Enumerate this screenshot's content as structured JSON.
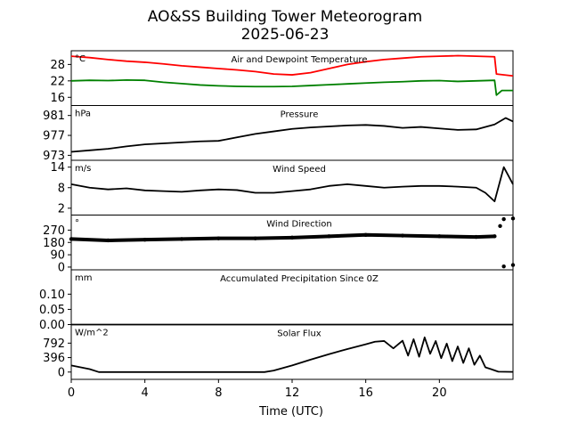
{
  "figure": {
    "title_line1": "AO&SS Building Tower Meteorogram",
    "title_line2": "2025-06-23",
    "xlabel": "Time (UTC)",
    "x_ticks": [
      0,
      4,
      8,
      12,
      16,
      20
    ],
    "xlim": [
      0,
      24
    ]
  },
  "chart_data": [
    {
      "type": "line",
      "title": "Air and Dewpoint Temperature",
      "ylabel": "°C",
      "ylim": [
        13,
        33
      ],
      "y_ticks": [
        16,
        22,
        28
      ],
      "series": [
        {
          "color": "#ff0000",
          "points": [
            [
              0,
              31.0
            ],
            [
              1,
              30.5
            ],
            [
              2,
              29.8
            ],
            [
              3,
              29.2
            ],
            [
              4,
              28.8
            ],
            [
              5,
              28.2
            ],
            [
              6,
              27.5
            ],
            [
              7,
              27.0
            ],
            [
              8,
              26.5
            ],
            [
              9,
              26.0
            ],
            [
              10,
              25.4
            ],
            [
              11,
              24.5
            ],
            [
              12,
              24.2
            ],
            [
              13,
              25.0
            ],
            [
              14,
              26.5
            ],
            [
              15,
              28.0
            ],
            [
              16,
              29.0
            ],
            [
              17,
              29.8
            ],
            [
              18,
              30.3
            ],
            [
              19,
              30.8
            ],
            [
              20,
              31.0
            ],
            [
              21,
              31.2
            ],
            [
              22,
              31.0
            ],
            [
              23,
              30.8
            ],
            [
              23.1,
              24.5
            ],
            [
              24,
              23.8
            ]
          ]
        },
        {
          "color": "#008000",
          "points": [
            [
              0,
              22.0
            ],
            [
              1,
              22.2
            ],
            [
              2,
              22.1
            ],
            [
              3,
              22.3
            ],
            [
              4,
              22.2
            ],
            [
              5,
              21.5
            ],
            [
              6,
              21.0
            ],
            [
              7,
              20.5
            ],
            [
              8,
              20.2
            ],
            [
              9,
              20.0
            ],
            [
              10,
              19.9
            ],
            [
              11,
              19.9
            ],
            [
              12,
              20.0
            ],
            [
              13,
              20.3
            ],
            [
              14,
              20.6
            ],
            [
              15,
              20.9
            ],
            [
              16,
              21.2
            ],
            [
              17,
              21.5
            ],
            [
              18,
              21.7
            ],
            [
              19,
              22.0
            ],
            [
              20,
              22.1
            ],
            [
              21,
              21.8
            ],
            [
              22,
              22.0
            ],
            [
              23,
              22.2
            ],
            [
              23.1,
              16.8
            ],
            [
              23.4,
              18.5
            ],
            [
              24,
              18.5
            ]
          ]
        }
      ]
    },
    {
      "type": "line",
      "title": "Pressure",
      "ylabel": "hPa",
      "ylim": [
        972,
        983
      ],
      "y_ticks": [
        973,
        977,
        981
      ],
      "series": [
        {
          "color": "#000000",
          "points": [
            [
              0,
              973.7
            ],
            [
              1,
              974.0
            ],
            [
              2,
              974.3
            ],
            [
              3,
              974.8
            ],
            [
              4,
              975.2
            ],
            [
              5,
              975.4
            ],
            [
              6,
              975.6
            ],
            [
              7,
              975.8
            ],
            [
              8,
              975.9
            ],
            [
              9,
              976.6
            ],
            [
              10,
              977.3
            ],
            [
              11,
              977.8
            ],
            [
              12,
              978.3
            ],
            [
              13,
              978.6
            ],
            [
              14,
              978.8
            ],
            [
              15,
              979.0
            ],
            [
              16,
              979.1
            ],
            [
              17,
              978.9
            ],
            [
              18,
              978.5
            ],
            [
              19,
              978.7
            ],
            [
              20,
              978.4
            ],
            [
              21,
              978.1
            ],
            [
              22,
              978.2
            ],
            [
              23,
              979.2
            ],
            [
              23.6,
              980.5
            ],
            [
              24,
              979.8
            ]
          ]
        }
      ]
    },
    {
      "type": "line",
      "title": "Wind Speed",
      "ylabel": "m/s",
      "ylim": [
        0,
        16
      ],
      "y_ticks": [
        2,
        8,
        14
      ],
      "series": [
        {
          "color": "#000000",
          "points": [
            [
              0,
              9.0
            ],
            [
              1,
              8.0
            ],
            [
              2,
              7.5
            ],
            [
              3,
              7.8
            ],
            [
              4,
              7.2
            ],
            [
              5,
              7.0
            ],
            [
              6,
              6.8
            ],
            [
              7,
              7.2
            ],
            [
              8,
              7.5
            ],
            [
              9,
              7.3
            ],
            [
              10,
              6.5
            ],
            [
              11,
              6.5
            ],
            [
              12,
              7.0
            ],
            [
              13,
              7.5
            ],
            [
              14,
              8.5
            ],
            [
              15,
              9.0
            ],
            [
              16,
              8.5
            ],
            [
              17,
              8.0
            ],
            [
              18,
              8.3
            ],
            [
              19,
              8.5
            ],
            [
              20,
              8.5
            ],
            [
              21,
              8.3
            ],
            [
              22,
              8.0
            ],
            [
              22.5,
              6.5
            ],
            [
              23,
              4.0
            ],
            [
              23.5,
              14.0
            ],
            [
              24,
              9.0
            ]
          ]
        }
      ]
    },
    {
      "type": "scatter",
      "title": "Wind Direction",
      "ylabel": "°",
      "ylim": [
        -20,
        380
      ],
      "y_ticks": [
        0,
        90,
        180,
        270
      ],
      "series": [
        {
          "color": "#000000",
          "points": [
            [
              0,
              205
            ],
            [
              2,
              195
            ],
            [
              4,
              200
            ],
            [
              6,
              205
            ],
            [
              8,
              210
            ],
            [
              10,
              210
            ],
            [
              12,
              215
            ],
            [
              14,
              225
            ],
            [
              16,
              235
            ],
            [
              18,
              230
            ],
            [
              20,
              225
            ],
            [
              22,
              220
            ],
            [
              23,
              225
            ],
            [
              23.3,
              300
            ],
            [
              23.5,
              350
            ],
            [
              24,
              355
            ],
            [
              23.5,
              5
            ],
            [
              24,
              15
            ]
          ]
        }
      ]
    },
    {
      "type": "line",
      "title": "Accumulated Precipitation Since 0Z",
      "ylabel": "mm",
      "ylim": [
        0,
        0.18
      ],
      "y_ticks": [
        0.0,
        0.05,
        0.1
      ],
      "series": [
        {
          "color": "#000000",
          "points": [
            [
              0,
              0
            ],
            [
              24,
              0
            ]
          ]
        }
      ]
    },
    {
      "type": "line",
      "title": "Solar Flux",
      "ylabel": "W/m^2",
      "ylim": [
        -200,
        1300
      ],
      "y_ticks": [
        0,
        396,
        792
      ],
      "series": [
        {
          "color": "#000000",
          "points": [
            [
              0,
              180
            ],
            [
              1,
              80
            ],
            [
              1.5,
              0
            ],
            [
              10.5,
              0
            ],
            [
              11,
              40
            ],
            [
              12,
              180
            ],
            [
              13,
              340
            ],
            [
              14,
              490
            ],
            [
              15,
              630
            ],
            [
              16,
              760
            ],
            [
              16.5,
              830
            ],
            [
              17,
              850
            ],
            [
              17.5,
              650
            ],
            [
              18,
              860
            ],
            [
              18.3,
              450
            ],
            [
              18.6,
              900
            ],
            [
              18.9,
              420
            ],
            [
              19.2,
              950
            ],
            [
              19.5,
              500
            ],
            [
              19.8,
              850
            ],
            [
              20.1,
              380
            ],
            [
              20.4,
              780
            ],
            [
              20.7,
              300
            ],
            [
              21,
              700
            ],
            [
              21.3,
              250
            ],
            [
              21.6,
              650
            ],
            [
              21.9,
              200
            ],
            [
              22.2,
              450
            ],
            [
              22.5,
              130
            ],
            [
              22.8,
              80
            ],
            [
              23.2,
              10
            ],
            [
              24,
              5
            ]
          ]
        }
      ]
    }
  ]
}
